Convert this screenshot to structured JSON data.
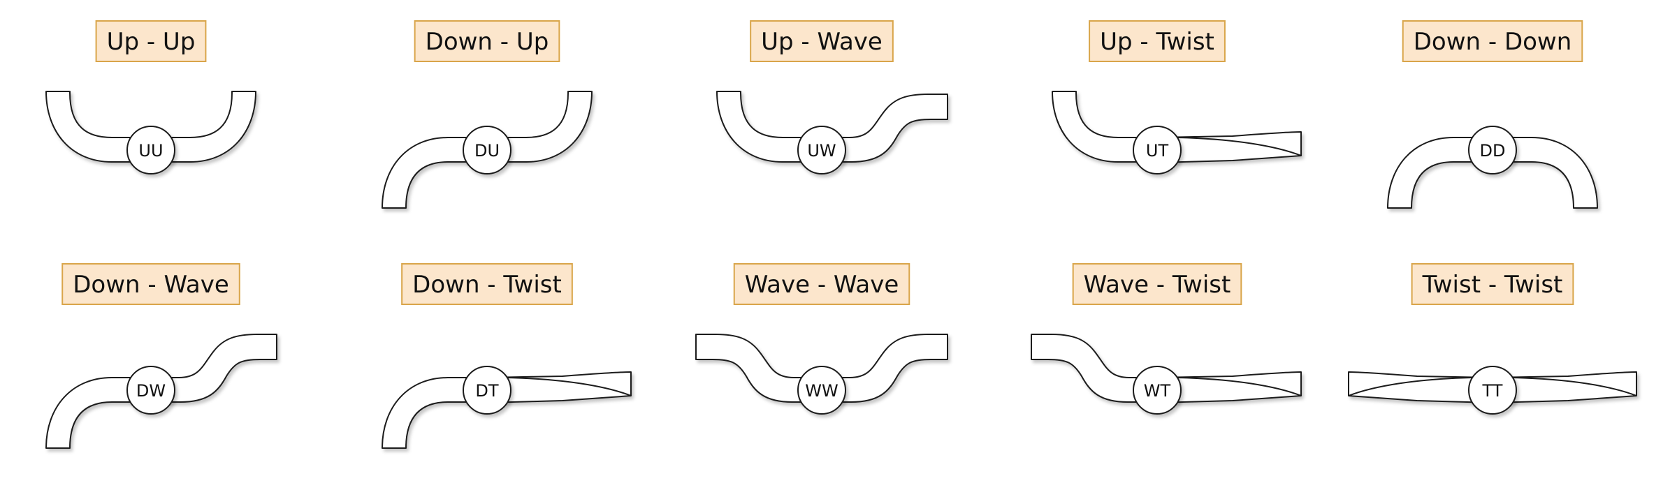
{
  "colors": {
    "label_fill": "#fce6cc",
    "label_stroke": "#d9a54a",
    "outline": "#1a1a1a"
  },
  "cells": [
    {
      "label": "Up - Up",
      "code": "UU",
      "left": "up",
      "right": "up"
    },
    {
      "label": "Down - Up",
      "code": "DU",
      "left": "down",
      "right": "up"
    },
    {
      "label": "Up - Wave",
      "code": "UW",
      "left": "up",
      "right": "wave"
    },
    {
      "label": "Up - Twist",
      "code": "UT",
      "left": "up",
      "right": "twist"
    },
    {
      "label": "Down - Down",
      "code": "DD",
      "left": "down",
      "right": "down"
    },
    {
      "label": "Down - Wave",
      "code": "DW",
      "left": "down",
      "right": "wave"
    },
    {
      "label": "Down - Twist",
      "code": "DT",
      "left": "down",
      "right": "twist"
    },
    {
      "label": "Wave - Wave",
      "code": "WW",
      "left": "wave",
      "right": "wave"
    },
    {
      "label": "Wave - Twist",
      "code": "WT",
      "left": "wave",
      "right": "twist"
    },
    {
      "label": "Twist - Twist",
      "code": "TT",
      "left": "twist",
      "right": "twist"
    }
  ]
}
